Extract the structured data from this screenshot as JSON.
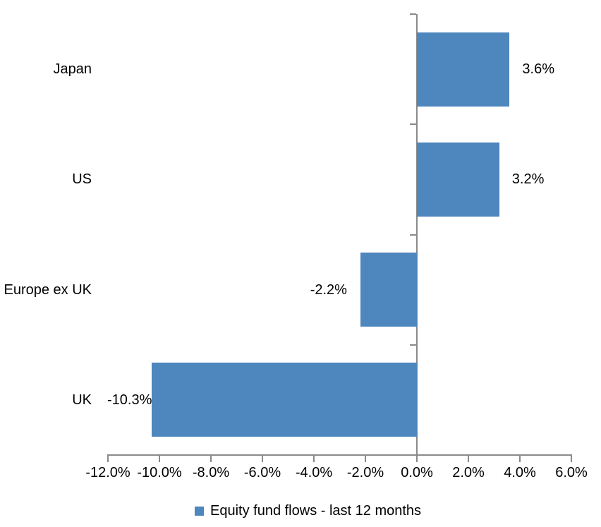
{
  "chart_data": {
    "type": "bar",
    "orientation": "horizontal",
    "title": "",
    "xlabel": "",
    "ylabel": "",
    "categories": [
      "Japan",
      "US",
      "Europe ex UK",
      "UK"
    ],
    "values": [
      3.6,
      3.2,
      -2.2,
      -10.3
    ],
    "value_labels": [
      "3.6%",
      "3.2%",
      "-2.2%",
      "-10.3%"
    ],
    "series_name": "Equity fund flows - last 12 months",
    "xlim": [
      -12,
      6
    ],
    "x_tick_step": 2,
    "x_tick_labels": [
      "-12.0%",
      "-10.0%",
      "-8.0%",
      "-6.0%",
      "-4.0%",
      "-2.0%",
      "0.0%",
      "2.0%",
      "4.0%",
      "6.0%"
    ],
    "grid": false,
    "legend_position": "bottom",
    "bar_color": "#4E86BE",
    "axis_color": "#8A8A8A",
    "text_color": "#000000"
  }
}
